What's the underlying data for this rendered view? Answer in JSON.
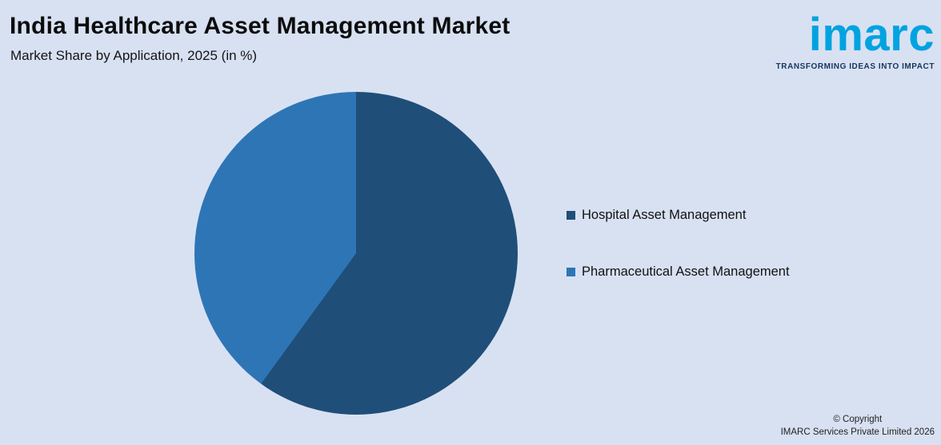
{
  "header": {
    "title": "India Healthcare Asset Management Market",
    "subtitle": "Market Share by Application, 2025 (in %)"
  },
  "logo": {
    "wordmark": "imarc",
    "tagline": "TRANSFORMING IDEAS INTO IMPACT",
    "brand_blue": "#00a3e0"
  },
  "chart_data": {
    "type": "pie",
    "title": "Market Share by Application, 2025 (in %)",
    "categories": [
      "Hospital Asset Management",
      "Pharmaceutical Asset Management"
    ],
    "values": [
      60,
      40
    ],
    "colors": [
      "#1f4e79",
      "#2e75b6"
    ],
    "start_angle_deg": 0,
    "direction": "clockwise",
    "legend_position": "right",
    "data_labels_shown": false
  },
  "footer": {
    "copyright_line": "© Copyright",
    "company_line": "IMARC Services Private Limited 2026"
  },
  "colors": {
    "background": "#d8e1f2",
    "title_text": "#0c0c0c",
    "legend_text": "#111111"
  }
}
